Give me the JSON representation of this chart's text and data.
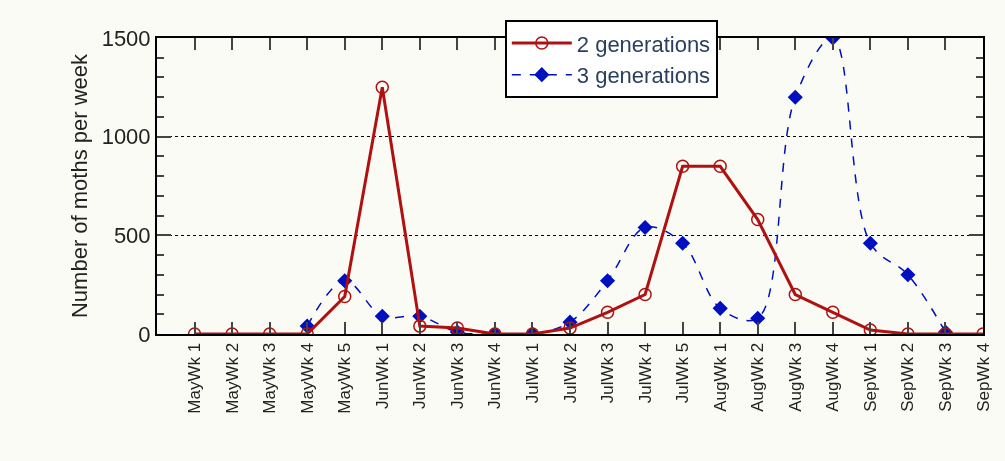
{
  "chart_data": {
    "type": "line",
    "ylabel": "Number of moths per week",
    "categories": [
      "MayWk 1",
      "MayWk 2",
      "MayWk 3",
      "MayWk 4",
      "MayWk 5",
      "JunWk 1",
      "JunWk 2",
      "JunWk 3",
      "JunWk 4",
      "JulWk 1",
      "JulWk 2",
      "JulWk 3",
      "JulWk 4",
      "JulWk 5",
      "AugWk 1",
      "AugWk 2",
      "AugWk 3",
      "AugWk 4",
      "SepWk 1",
      "SepWk 2",
      "SepWk 3",
      "SepWk 4"
    ],
    "series": [
      {
        "name": "2 generations",
        "color": "#b01010",
        "marker": "circle",
        "line_style": "solid",
        "values": [
          0,
          0,
          0,
          0,
          190,
          1250,
          40,
          30,
          0,
          0,
          30,
          110,
          200,
          850,
          850,
          580,
          200,
          110,
          20,
          0,
          0,
          0
        ]
      },
      {
        "name": "3 generations",
        "color": "#0010c0",
        "marker": "diamond",
        "line_style": "dashed",
        "values": [
          null,
          null,
          null,
          40,
          270,
          90,
          90,
          10,
          0,
          0,
          60,
          270,
          540,
          460,
          130,
          80,
          1200,
          1500,
          460,
          300,
          10,
          null
        ]
      }
    ],
    "ylim": [
      0,
      1500
    ],
    "yticks": [
      0,
      500,
      1000,
      1500
    ],
    "grid": "y",
    "legend": "top"
  }
}
